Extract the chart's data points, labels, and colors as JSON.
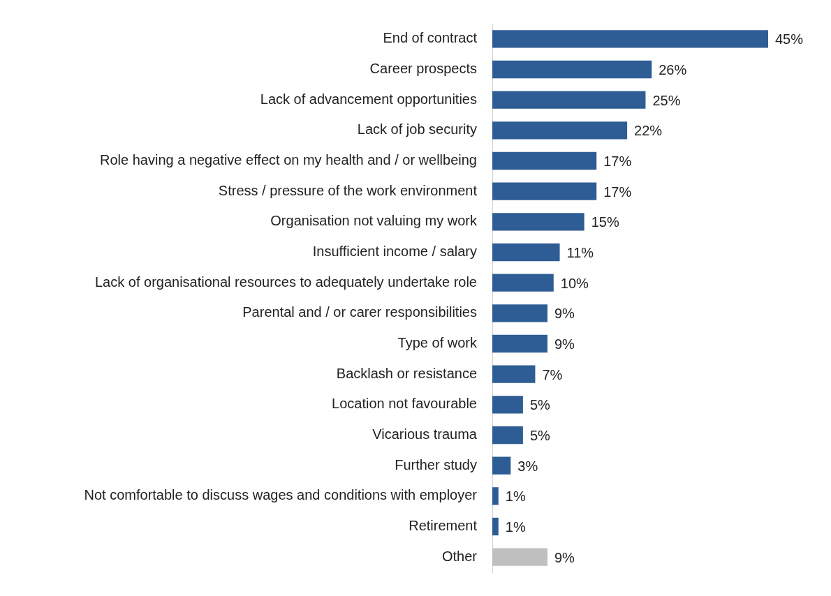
{
  "chart_data": {
    "type": "bar",
    "orientation": "horizontal",
    "categories": [
      "End of contract",
      "Career prospects",
      "Lack of advancement opportunities",
      "Lack of job security",
      "Role having a negative effect on my health and / or wellbeing",
      "Stress / pressure of the work environment",
      "Organisation not valuing my work",
      "Insufficient income / salary",
      "Lack of organisational resources to adequately undertake role",
      "Parental and / or carer responsibilities",
      "Type of work",
      "Backlash or resistance",
      "Location not favourable",
      "Vicarious trauma",
      "Further study",
      "Not comfortable to discuss wages and conditions with employer",
      "Retirement",
      "Other"
    ],
    "values": [
      45,
      26,
      25,
      22,
      17,
      17,
      15,
      11,
      10,
      9,
      9,
      7,
      5,
      5,
      3,
      1,
      1,
      9
    ],
    "colors": [
      "#2e5c94",
      "#2e5c94",
      "#2e5c94",
      "#2e5c94",
      "#2e5c94",
      "#2e5c94",
      "#2e5c94",
      "#2e5c94",
      "#2e5c94",
      "#2e5c94",
      "#2e5c94",
      "#2e5c94",
      "#2e5c94",
      "#2e5c94",
      "#2e5c94",
      "#2e5c94",
      "#2e5c94",
      "#bfbfbf"
    ],
    "value_labels": [
      "45%",
      "26%",
      "25%",
      "22%",
      "17%",
      "17%",
      "15%",
      "11%",
      "10%",
      "9%",
      "9%",
      "7%",
      "5%",
      "5%",
      "3%",
      "1%",
      "1%",
      "9%"
    ],
    "legend": false
  }
}
